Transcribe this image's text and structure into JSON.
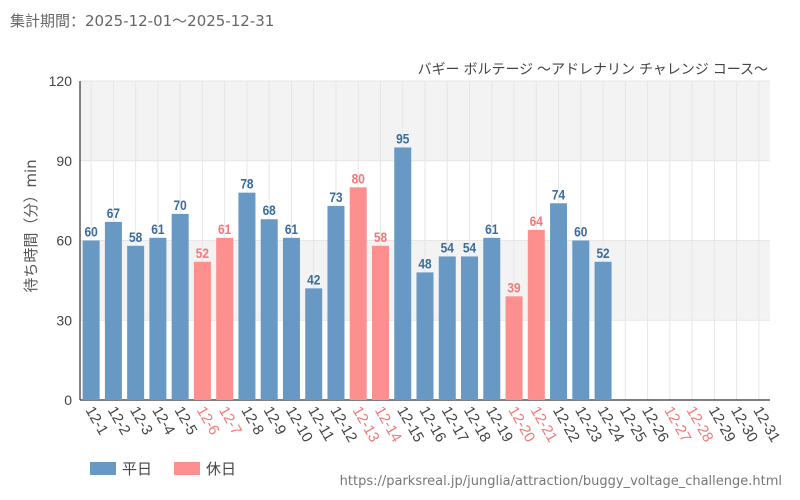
{
  "header": {
    "period_label": "集計期間：2025-12-01～2025-12-31"
  },
  "colors": {
    "weekday": "#6899c4",
    "holiday": "#fd8f8f",
    "weekday_label": "#3a6b9b",
    "holiday_label": "#f47878",
    "grid": "#e6e6e6",
    "band": "#f3f3f3"
  },
  "legend": {
    "weekday": "平日",
    "holiday": "休日"
  },
  "source_url": "https://parksreal.jp/junglia/attraction/buggy_voltage_challenge.html",
  "chart_data": {
    "type": "bar",
    "title": "バギー ボルテージ ～アドレナリン チャレンジ コース～",
    "xlabel": "",
    "ylabel": "待ち時間（分）min",
    "ylim": [
      0,
      120
    ],
    "yticks": [
      0,
      30,
      60,
      90,
      120
    ],
    "categories": [
      "12-1",
      "12-2",
      "12-3",
      "12-4",
      "12-5",
      "12-6",
      "12-7",
      "12-8",
      "12-9",
      "12-10",
      "12-11",
      "12-12",
      "12-13",
      "12-14",
      "12-15",
      "12-16",
      "12-17",
      "12-18",
      "12-19",
      "12-20",
      "12-21",
      "12-22",
      "12-23",
      "12-24",
      "12-25",
      "12-26",
      "12-27",
      "12-28",
      "12-29",
      "12-30",
      "12-31"
    ],
    "values": [
      60,
      67,
      58,
      61,
      70,
      52,
      61,
      78,
      68,
      61,
      42,
      73,
      80,
      58,
      95,
      48,
      54,
      54,
      61,
      39,
      64,
      74,
      60,
      52,
      null,
      null,
      null,
      null,
      null,
      null,
      null
    ],
    "holiday": [
      false,
      false,
      false,
      false,
      false,
      true,
      true,
      false,
      false,
      false,
      false,
      false,
      true,
      true,
      false,
      false,
      false,
      false,
      false,
      true,
      true,
      false,
      false,
      false,
      false,
      false,
      true,
      true,
      false,
      false,
      false
    ]
  }
}
